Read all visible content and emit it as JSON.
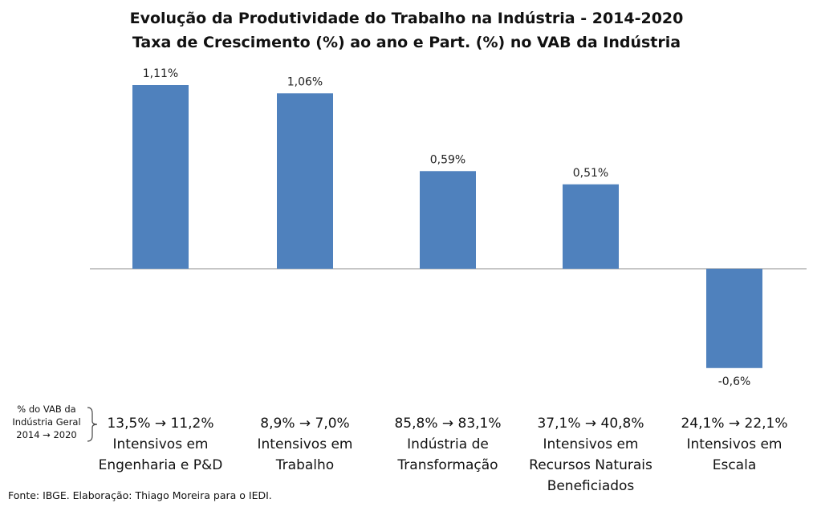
{
  "chart_data": {
    "type": "bar",
    "title": "Evolução da Produtividade do Trabalho na Indústria - 2014-2020",
    "subtitle": "Taxa de Crescimento (%) ao ano e Part. (%) no VAB da Indústria",
    "categories": [
      "Intensivos em Engenharia e P&D",
      "Intensivos em Trabalho",
      "Indústria de Transformação",
      "Intensivos em Recursos Naturais Beneficiados",
      "Intensivos em Escala"
    ],
    "values": [
      1.11,
      1.06,
      0.59,
      0.51,
      -0.6
    ],
    "data_labels": [
      "1,11%",
      "1,06%",
      "0,59%",
      "0,51%",
      "-0,6%"
    ],
    "vab_share": [
      "13,5% → 11,2%",
      "8,9% → 7,0%",
      "85,8% → 83,1%",
      "37,1% → 40,8%",
      "24,1% → 22,1%"
    ],
    "bar_color": "#4F81BD",
    "ylim": [
      -0.6,
      1.11
    ],
    "grid": false,
    "legend": "none"
  },
  "side_label": "% do VAB da Indústria Geral 2014 → 2020",
  "source": "Fonte: IBGE. Elaboração: Thiago Moreira para o IEDI."
}
